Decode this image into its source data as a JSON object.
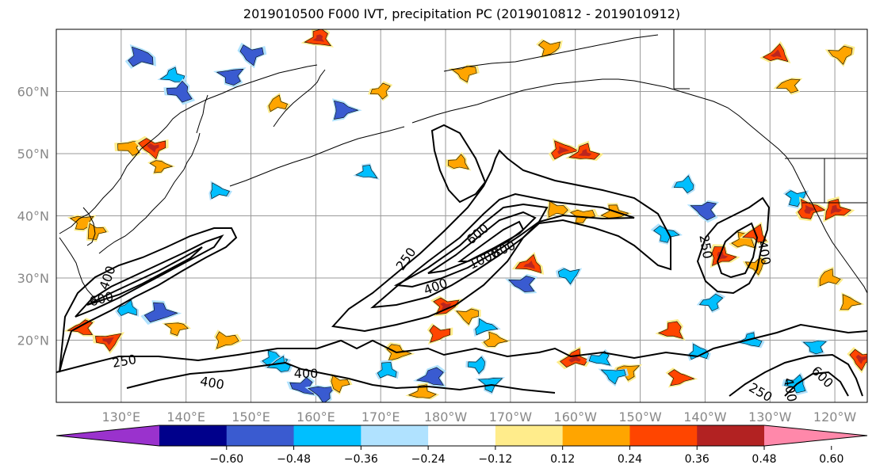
{
  "chart_data": {
    "type": "heatmap",
    "title": "2019010500 F000 IVT, precipitation PC (2019010812 - 2019010912)",
    "map": {
      "projection": "PlateCarree (central longitude 180)",
      "lon_range": [
        120,
        245
      ],
      "lat_range": [
        10,
        70
      ],
      "gridlines": true,
      "coastlines": true,
      "country_borders": true
    },
    "xticks": {
      "positions": [
        130,
        140,
        150,
        160,
        170,
        180,
        190,
        200,
        210,
        220,
        230,
        240
      ],
      "labels": [
        "130°E",
        "140°E",
        "150°E",
        "160°E",
        "170°E",
        "180°W",
        "170°W",
        "160°W",
        "150°W",
        "140°W",
        "130°W",
        "120°W"
      ]
    },
    "yticks": {
      "positions": [
        20,
        30,
        40,
        50,
        60
      ],
      "labels": [
        "20°N",
        "30°N",
        "40°N",
        "50°N",
        "60°N"
      ]
    },
    "colorbar": {
      "orientation": "horizontal",
      "extend": "both",
      "boundaries": [
        -0.72,
        -0.6,
        -0.48,
        -0.36,
        -0.24,
        -0.12,
        0.12,
        0.24,
        0.36,
        0.48,
        0.6,
        0.72
      ],
      "colors": [
        "#9a32cd",
        "#00008b",
        "#3a5bd0",
        "#00bfff",
        "#b0e2ff",
        "#ffffff",
        "#ffec8b",
        "#ffa500",
        "#ff4500",
        "#b22222",
        "#ff88aa"
      ],
      "tick_values": [
        -0.6,
        -0.48,
        -0.36,
        -0.24,
        -0.12,
        0.12,
        0.24,
        0.36,
        0.48,
        0.6
      ],
      "tick_labels": [
        "−0.60",
        "−0.48",
        "−0.36",
        "−0.24",
        "−0.12",
        "0.12",
        "0.24",
        "0.36",
        "0.48",
        "0.60"
      ]
    },
    "ivt_contour_levels": [
      250,
      400,
      600,
      800,
      1000
    ],
    "ivt_contour_labels": [
      {
        "text": "250",
        "lon": 174,
        "lat": 33,
        "angle": -55
      },
      {
        "text": "600",
        "lon": 185,
        "lat": 37,
        "angle": -40
      },
      {
        "text": "1000",
        "lon": 186,
        "lat": 33,
        "angle": -25
      },
      {
        "text": "800",
        "lon": 189,
        "lat": 34.5,
        "angle": -25
      },
      {
        "text": "400",
        "lon": 178.5,
        "lat": 28.5,
        "angle": -20
      },
      {
        "text": "250",
        "lon": 220,
        "lat": 35,
        "angle": 80
      },
      {
        "text": "400",
        "lon": 229,
        "lat": 34,
        "angle": 80
      },
      {
        "text": "400",
        "lon": 128,
        "lat": 30,
        "angle": -70
      },
      {
        "text": "600",
        "lon": 127,
        "lat": 26.5,
        "angle": -15
      },
      {
        "text": "250",
        "lon": 130.5,
        "lat": 16.5,
        "angle": -10
      },
      {
        "text": "400",
        "lon": 144,
        "lat": 13,
        "angle": 10
      },
      {
        "text": "400",
        "lon": 158.5,
        "lat": 14.5,
        "angle": 0
      },
      {
        "text": "250",
        "lon": 228.5,
        "lat": 11.5,
        "angle": 30
      },
      {
        "text": "400",
        "lon": 233,
        "lat": 12,
        "angle": 80
      },
      {
        "text": "600",
        "lon": 238,
        "lat": 14,
        "angle": 45
      }
    ],
    "precip_pc_anomalies": [
      {
        "lon": 133,
        "lat": 65.5,
        "value": -0.45
      },
      {
        "lon": 138,
        "lat": 62.5,
        "value": -0.3
      },
      {
        "lon": 139,
        "lat": 60,
        "value": -0.4
      },
      {
        "lon": 147,
        "lat": 62.5,
        "value": -0.38
      },
      {
        "lon": 150,
        "lat": 66,
        "value": -0.42
      },
      {
        "lon": 164,
        "lat": 57,
        "value": -0.4
      },
      {
        "lon": 154,
        "lat": 58,
        "value": 0.3
      },
      {
        "lon": 160.5,
        "lat": 68.5,
        "value": 0.38
      },
      {
        "lon": 170,
        "lat": 60,
        "value": 0.26
      },
      {
        "lon": 183,
        "lat": 63,
        "value": 0.33
      },
      {
        "lon": 196,
        "lat": 67,
        "value": 0.34
      },
      {
        "lon": 198,
        "lat": 50.5,
        "value": 0.4
      },
      {
        "lon": 201.5,
        "lat": 50,
        "value": 0.42
      },
      {
        "lon": 182,
        "lat": 48.5,
        "value": 0.3
      },
      {
        "lon": 131.5,
        "lat": 51,
        "value": 0.33
      },
      {
        "lon": 135,
        "lat": 51,
        "value": 0.42
      },
      {
        "lon": 136,
        "lat": 48,
        "value": 0.26
      },
      {
        "lon": 145,
        "lat": 44,
        "value": -0.3
      },
      {
        "lon": 168,
        "lat": 47,
        "value": -0.28
      },
      {
        "lon": 217,
        "lat": 45,
        "value": -0.3
      },
      {
        "lon": 220,
        "lat": 41,
        "value": -0.38
      },
      {
        "lon": 234,
        "lat": 43,
        "value": -0.3
      },
      {
        "lon": 236,
        "lat": 41,
        "value": 0.42
      },
      {
        "lon": 240,
        "lat": 41,
        "value": 0.45
      },
      {
        "lon": 231,
        "lat": 66,
        "value": 0.38
      },
      {
        "lon": 233,
        "lat": 61,
        "value": 0.32
      },
      {
        "lon": 241,
        "lat": 66,
        "value": 0.35
      },
      {
        "lon": 201,
        "lat": 40,
        "value": 0.3
      },
      {
        "lon": 197,
        "lat": 41,
        "value": 0.3
      },
      {
        "lon": 206,
        "lat": 40.5,
        "value": 0.34
      },
      {
        "lon": 193,
        "lat": 32,
        "value": 0.4
      },
      {
        "lon": 192,
        "lat": 29,
        "value": -0.4
      },
      {
        "lon": 199,
        "lat": 30.5,
        "value": -0.3
      },
      {
        "lon": 214,
        "lat": 37,
        "value": -0.32
      },
      {
        "lon": 222.5,
        "lat": 33.5,
        "value": 0.4
      },
      {
        "lon": 226,
        "lat": 36,
        "value": 0.35
      },
      {
        "lon": 228,
        "lat": 37,
        "value": 0.36
      },
      {
        "lon": 228,
        "lat": 32,
        "value": 0.3
      },
      {
        "lon": 124,
        "lat": 39,
        "value": 0.32
      },
      {
        "lon": 126,
        "lat": 37.5,
        "value": 0.28
      },
      {
        "lon": 136,
        "lat": 24.5,
        "value": -0.45
      },
      {
        "lon": 131,
        "lat": 25,
        "value": -0.3
      },
      {
        "lon": 124,
        "lat": 22,
        "value": 0.36
      },
      {
        "lon": 128,
        "lat": 20,
        "value": 0.4
      },
      {
        "lon": 138.5,
        "lat": 22,
        "value": 0.28
      },
      {
        "lon": 146,
        "lat": 20,
        "value": 0.34
      },
      {
        "lon": 153.5,
        "lat": 17,
        "value": -0.32
      },
      {
        "lon": 154.5,
        "lat": 16,
        "value": -0.3
      },
      {
        "lon": 158,
        "lat": 12.5,
        "value": -0.38
      },
      {
        "lon": 161,
        "lat": 11.5,
        "value": -0.4
      },
      {
        "lon": 163.5,
        "lat": 13,
        "value": 0.3
      },
      {
        "lon": 172.5,
        "lat": 18,
        "value": 0.34
      },
      {
        "lon": 171,
        "lat": 15,
        "value": -0.3
      },
      {
        "lon": 178,
        "lat": 14,
        "value": -0.4
      },
      {
        "lon": 185,
        "lat": 16,
        "value": -0.28
      },
      {
        "lon": 187,
        "lat": 13,
        "value": -0.32
      },
      {
        "lon": 179,
        "lat": 21,
        "value": 0.36
      },
      {
        "lon": 187.5,
        "lat": 20,
        "value": 0.3
      },
      {
        "lon": 200,
        "lat": 17,
        "value": 0.38
      },
      {
        "lon": 204,
        "lat": 17,
        "value": -0.28
      },
      {
        "lon": 208,
        "lat": 15,
        "value": 0.34
      },
      {
        "lon": 206,
        "lat": 14.5,
        "value": -0.34
      },
      {
        "lon": 216,
        "lat": 14,
        "value": 0.36
      },
      {
        "lon": 219,
        "lat": 18,
        "value": -0.3
      },
      {
        "lon": 227,
        "lat": 20,
        "value": -0.28
      },
      {
        "lon": 234,
        "lat": 13,
        "value": -0.32
      },
      {
        "lon": 237,
        "lat": 19,
        "value": -0.3
      },
      {
        "lon": 244,
        "lat": 17,
        "value": 0.42
      },
      {
        "lon": 242,
        "lat": 26,
        "value": 0.3
      },
      {
        "lon": 239,
        "lat": 30,
        "value": 0.34
      },
      {
        "lon": 215,
        "lat": 21.5,
        "value": 0.36
      },
      {
        "lon": 221,
        "lat": 26,
        "value": -0.3
      },
      {
        "lon": 183.5,
        "lat": 24,
        "value": 0.3
      },
      {
        "lon": 180,
        "lat": 25.5,
        "value": 0.4
      },
      {
        "lon": 186,
        "lat": 22,
        "value": -0.32
      },
      {
        "lon": 176.5,
        "lat": 11.5,
        "value": 0.34
      }
    ]
  }
}
